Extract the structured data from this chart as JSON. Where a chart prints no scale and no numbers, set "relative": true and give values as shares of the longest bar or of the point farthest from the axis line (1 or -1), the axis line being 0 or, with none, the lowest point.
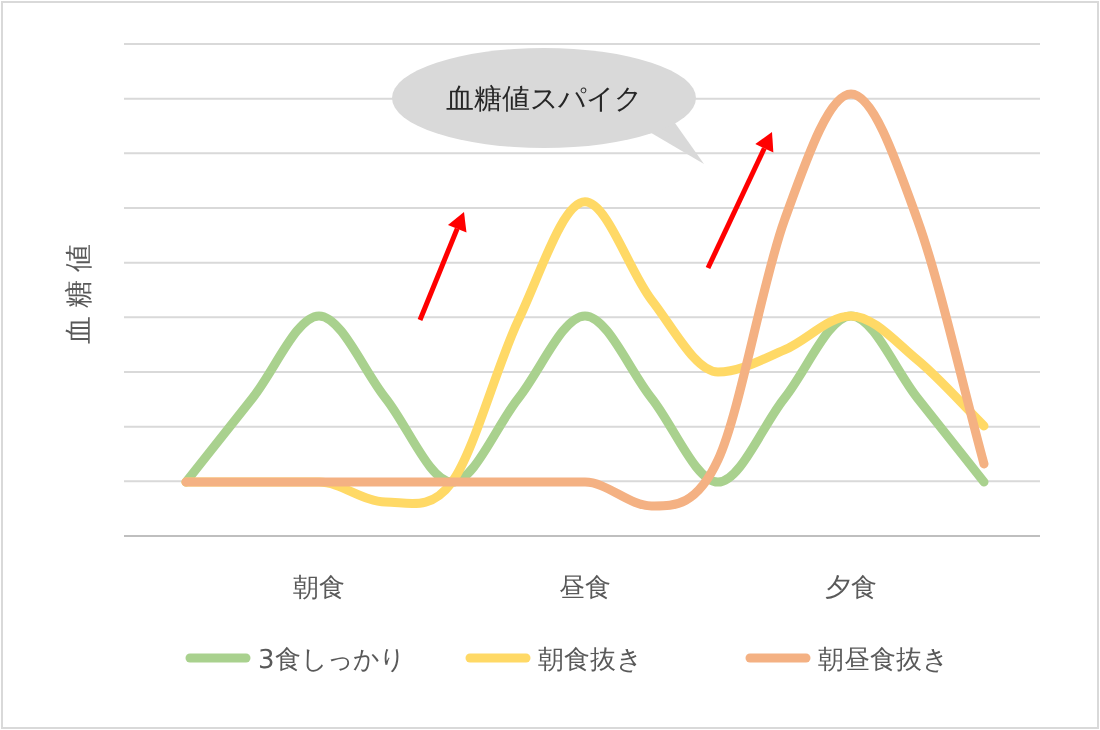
{
  "chart_data": {
    "type": "line",
    "relative": true,
    "ylabel": "血糖値",
    "grid": true,
    "legend": "bottom",
    "marker": "none",
    "line_style": "solid",
    "categories": [
      null,
      null,
      "朝食",
      null,
      null,
      null,
      "昼食",
      null,
      null,
      null,
      "夕食",
      null,
      null
    ],
    "annotations": [
      "血糖値スパイク"
    ],
    "series": [
      {
        "name": "3食しっかり",
        "color": "#a9d18e",
        "values": [
          0.122,
          0.312,
          0.498,
          0.312,
          0.122,
          0.312,
          0.498,
          0.312,
          0.122,
          0.312,
          0.498,
          0.312,
          0.122
        ]
      },
      {
        "name": "朝食抜き",
        "color": "#ffd966",
        "values": [
          0.122,
          0.122,
          0.122,
          0.077,
          0.122,
          0.489,
          0.756,
          0.534,
          0.371,
          0.421,
          0.498,
          0.398,
          0.249
        ]
      },
      {
        "name": "朝昼食抜き",
        "color": "#f4b183",
        "values": [
          0.122,
          0.122,
          0.122,
          0.122,
          0.122,
          0.122,
          0.122,
          0.068,
          0.172,
          0.715,
          1,
          0.715,
          0.163
        ]
      }
    ]
  }
}
